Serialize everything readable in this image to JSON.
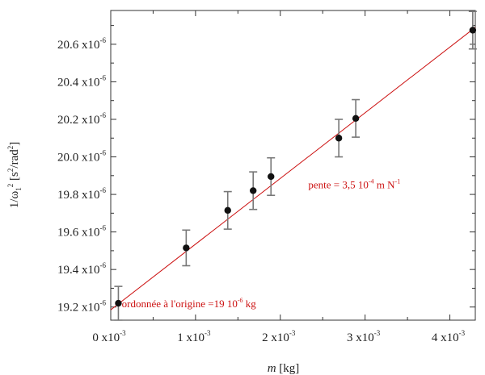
{
  "chart_data": {
    "type": "scatter",
    "x_unit": "kg",
    "y_unit": "s²/rad²",
    "xlim": [
      0,
      0.0043
    ],
    "ylim": [
      1.913e-05,
      2.078e-05
    ],
    "x_ticks": [
      {
        "value": 0,
        "label": "0 x10",
        "exp": "-3"
      },
      {
        "value": 0.001,
        "label": "1 x10",
        "exp": "-3"
      },
      {
        "value": 0.002,
        "label": "2 x10",
        "exp": "-3"
      },
      {
        "value": 0.003,
        "label": "3 x10",
        "exp": "-3"
      },
      {
        "value": 0.004,
        "label": "4 x10",
        "exp": "-3"
      }
    ],
    "y_ticks": [
      {
        "value": 1.92e-05,
        "label": "19.2 x10",
        "exp": "-6"
      },
      {
        "value": 1.94e-05,
        "label": "19.4 x10",
        "exp": "-6"
      },
      {
        "value": 1.96e-05,
        "label": "19.6 x10",
        "exp": "-6"
      },
      {
        "value": 1.98e-05,
        "label": "19.8 x10",
        "exp": "-6"
      },
      {
        "value": 2e-05,
        "label": "20.0 x10",
        "exp": "-6"
      },
      {
        "value": 2.02e-05,
        "label": "20.2 x10",
        "exp": "-6"
      },
      {
        "value": 2.04e-05,
        "label": "20.4 x10",
        "exp": "-6"
      },
      {
        "value": 2.06e-05,
        "label": "20.6 x10",
        "exp": "-6"
      }
    ],
    "xlabel": {
      "var": "m",
      "unit": " [kg]"
    },
    "ylabel": {
      "base": "1/ω",
      "sub": "1",
      "sup": "2",
      "rest": " [s",
      "sup2": "2",
      "rest2": "/rad",
      "sup3": "2",
      "end": "]"
    },
    "points": [
      {
        "x": 9e-05,
        "y": 1.922e-05,
        "err": 9e-08
      },
      {
        "x": 0.00089,
        "y": 1.9515e-05,
        "err": 9.5e-08
      },
      {
        "x": 0.00138,
        "y": 1.9715e-05,
        "err": 1e-07
      },
      {
        "x": 0.00168,
        "y": 1.982e-05,
        "err": 1e-07
      },
      {
        "x": 0.00189,
        "y": 1.9895e-05,
        "err": 1e-07
      },
      {
        "x": 0.00269,
        "y": 2.01e-05,
        "err": 1e-07
      },
      {
        "x": 0.00289,
        "y": 2.0205e-05,
        "err": 1e-07
      },
      {
        "x": 0.00427,
        "y": 2.0675e-05,
        "err": 1e-07
      }
    ],
    "fit_line": {
      "x": [
        0,
        0.0043
      ],
      "y": [
        1.9185e-05,
        2.069e-05
      ],
      "color": "#cc1111"
    },
    "annotations": [
      {
        "text": "pente = 3,5 10",
        "exp": "-4",
        "after": "  m N",
        "exp2": "-1",
        "anchor": {
          "x": 0.00233,
          "y": 1.9855e-05
        }
      },
      {
        "text": "ordonnée à l'origine =19 10",
        "exp": "-6",
        "after": " kg",
        "anchor": {
          "x": 0.00013,
          "y": 1.922e-05
        }
      }
    ],
    "marker_color": "#111111",
    "errorbar_color": "#777777",
    "grid": false
  }
}
